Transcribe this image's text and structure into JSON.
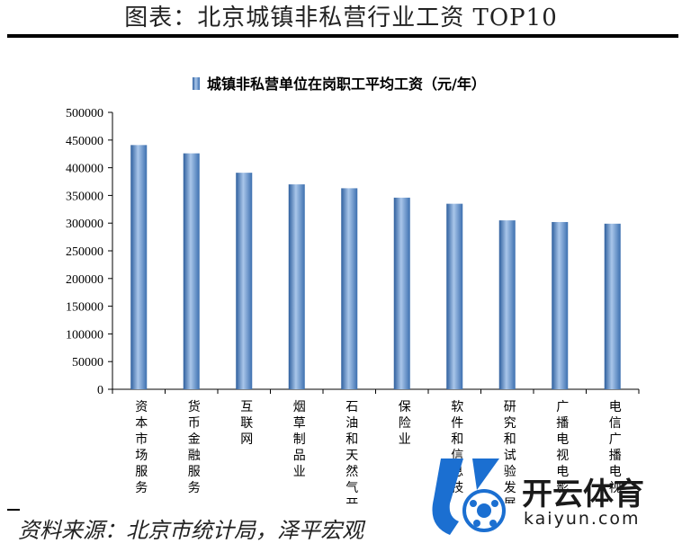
{
  "header": {
    "title": "图表：北京城镇非私营行业工资 TOP10"
  },
  "footer": {
    "source": "资料来源：北京市统计局，泽平宏观"
  },
  "watermark": {
    "brand": "开云体育",
    "url": "kaiyun.com"
  },
  "colors": {
    "bar": "#4a80c0",
    "bar_light": "#a9c6ea",
    "bar_dark": "#2e5f9e",
    "axis": "#000000"
  },
  "chart_data": {
    "type": "bar",
    "title": "",
    "legend": {
      "label": "城镇非私营单位在岗职工平均工资（元/年）",
      "position": "top"
    },
    "categories": [
      "资本市场服务",
      "货币金融服务",
      "互联网",
      "烟草制品业",
      "石油和天然气开",
      "保险业",
      "软件和信息技",
      "研究和试验发展",
      "广播电视电影",
      "电信广播电视"
    ],
    "series": [
      {
        "name": "城镇非私营单位在岗职工平均工资（元/年）",
        "values": [
          441000,
          426000,
          391000,
          370000,
          363000,
          346000,
          335000,
          305000,
          302000,
          299000
        ]
      }
    ],
    "ylim": [
      0,
      500000
    ],
    "yticks": [
      0,
      50000,
      100000,
      150000,
      200000,
      250000,
      300000,
      350000,
      400000,
      450000,
      500000
    ],
    "xlabel": "",
    "ylabel": "",
    "grid": false
  }
}
